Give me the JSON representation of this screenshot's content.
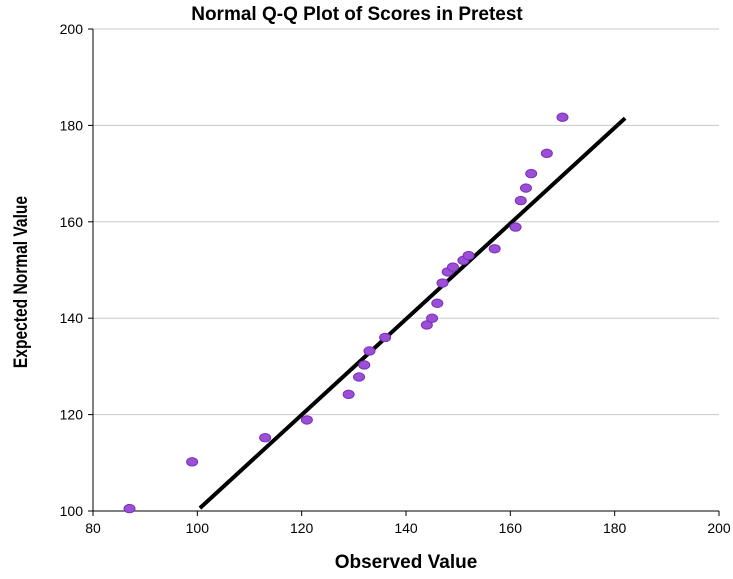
{
  "chart_data": {
    "type": "scatter",
    "title": "Normal Q-Q Plot of Scores in Pretest",
    "xlabel": "Observed Value",
    "ylabel": "Expected Normal Value",
    "xlim": [
      80,
      200
    ],
    "ylim": [
      100,
      200
    ],
    "xticks": [
      80,
      100,
      120,
      140,
      160,
      180,
      200
    ],
    "yticks": [
      100,
      120,
      140,
      160,
      180,
      200
    ],
    "grid": "horizontal",
    "point_color": "#9b4fd6",
    "point_edge_color": "#7a2fb8",
    "line_color": "#000000",
    "reference_line": {
      "x": [
        100.5,
        182
      ],
      "y": [
        100.6,
        181.5
      ]
    },
    "points": [
      {
        "x": 87,
        "y": 100.5
      },
      {
        "x": 99,
        "y": 110.2
      },
      {
        "x": 113,
        "y": 115.2
      },
      {
        "x": 121,
        "y": 118.9
      },
      {
        "x": 129,
        "y": 124.2
      },
      {
        "x": 131,
        "y": 127.8
      },
      {
        "x": 132,
        "y": 130.3
      },
      {
        "x": 133,
        "y": 133.2
      },
      {
        "x": 136,
        "y": 136.0
      },
      {
        "x": 144,
        "y": 138.6
      },
      {
        "x": 145,
        "y": 140.0
      },
      {
        "x": 146,
        "y": 143.1
      },
      {
        "x": 147,
        "y": 147.3
      },
      {
        "x": 148,
        "y": 149.6
      },
      {
        "x": 149,
        "y": 150.6
      },
      {
        "x": 151,
        "y": 152.0
      },
      {
        "x": 152,
        "y": 153.0
      },
      {
        "x": 157,
        "y": 154.4
      },
      {
        "x": 161,
        "y": 158.9
      },
      {
        "x": 162,
        "y": 164.4
      },
      {
        "x": 163,
        "y": 167.0
      },
      {
        "x": 164,
        "y": 170.0
      },
      {
        "x": 167,
        "y": 174.2
      },
      {
        "x": 170,
        "y": 181.7
      }
    ]
  }
}
